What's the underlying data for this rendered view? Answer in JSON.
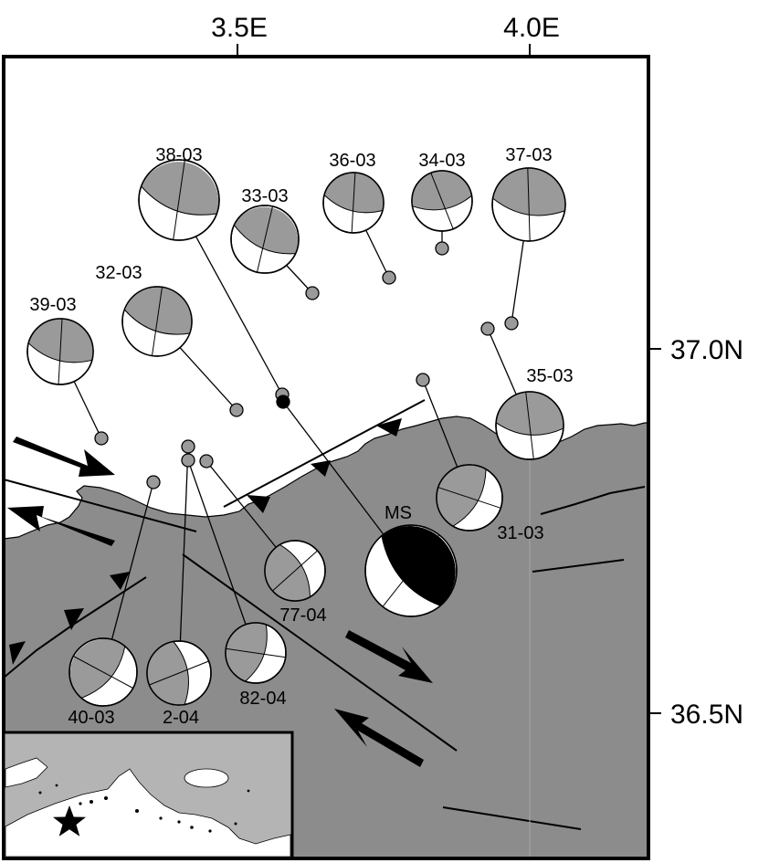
{
  "axes": {
    "lon_ticks": [
      "3.5E",
      "4.0E"
    ],
    "lat_ticks": [
      "37.0N",
      "36.5N"
    ]
  },
  "colors": {
    "land": "#8c8c8c",
    "sea": "#ffffff",
    "mechanism_shade": "#9a9a9a",
    "mainshock_shade": "#000000",
    "outline": "#000000"
  },
  "mechanisms": [
    {
      "label": "38-03",
      "kind": "aftershock"
    },
    {
      "label": "33-03",
      "kind": "aftershock"
    },
    {
      "label": "36-03",
      "kind": "aftershock"
    },
    {
      "label": "34-03",
      "kind": "aftershock"
    },
    {
      "label": "37-03",
      "kind": "aftershock"
    },
    {
      "label": "32-03",
      "kind": "aftershock"
    },
    {
      "label": "39-03",
      "kind": "aftershock"
    },
    {
      "label": "35-03",
      "kind": "aftershock"
    },
    {
      "label": "31-03",
      "kind": "aftershock"
    },
    {
      "label": "MS",
      "kind": "mainshock"
    },
    {
      "label": "77-04",
      "kind": "aftershock"
    },
    {
      "label": "82-04",
      "kind": "aftershock"
    },
    {
      "label": "2-04",
      "kind": "aftershock"
    },
    {
      "label": "40-03",
      "kind": "aftershock"
    }
  ],
  "inset": {
    "description_icon": "star-icon",
    "marker": "star"
  }
}
